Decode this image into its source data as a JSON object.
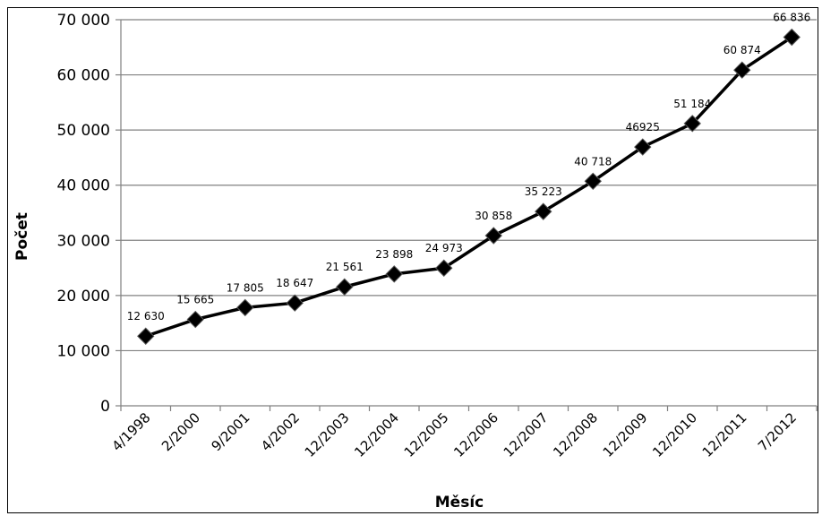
{
  "chart_data": {
    "type": "line",
    "xlabel": "Měsíc",
    "ylabel": "Počet",
    "ylim": [
      0,
      70000
    ],
    "yticks": [
      0,
      10000,
      20000,
      30000,
      40000,
      50000,
      60000,
      70000
    ],
    "ytick_labels": [
      "0",
      "10 000",
      "20 000",
      "30 000",
      "40 000",
      "50 000",
      "60 000",
      "70 000"
    ],
    "grid": true,
    "categories": [
      "4/1998",
      "2/2000",
      "9/2001",
      "4/2002",
      "12/2003",
      "12/2004",
      "12/2005",
      "12/2006",
      "12/2007",
      "12/2008",
      "12/2009",
      "12/2010",
      "12/2011",
      "7/2012"
    ],
    "values": [
      12630,
      15665,
      17805,
      18647,
      21561,
      23898,
      24973,
      30858,
      35223,
      40718,
      46925,
      51184,
      60874,
      66836
    ],
    "data_labels": [
      "12 630",
      "15 665",
      "17 805",
      "18 647",
      "21 561",
      "23 898",
      "24 973",
      "30 858",
      "35 223",
      "40 718",
      "46925",
      "51 184",
      "60 874",
      "66 836"
    ],
    "colors": {
      "line": "#000000",
      "marker": "#000000",
      "grid": "#808080"
    }
  }
}
